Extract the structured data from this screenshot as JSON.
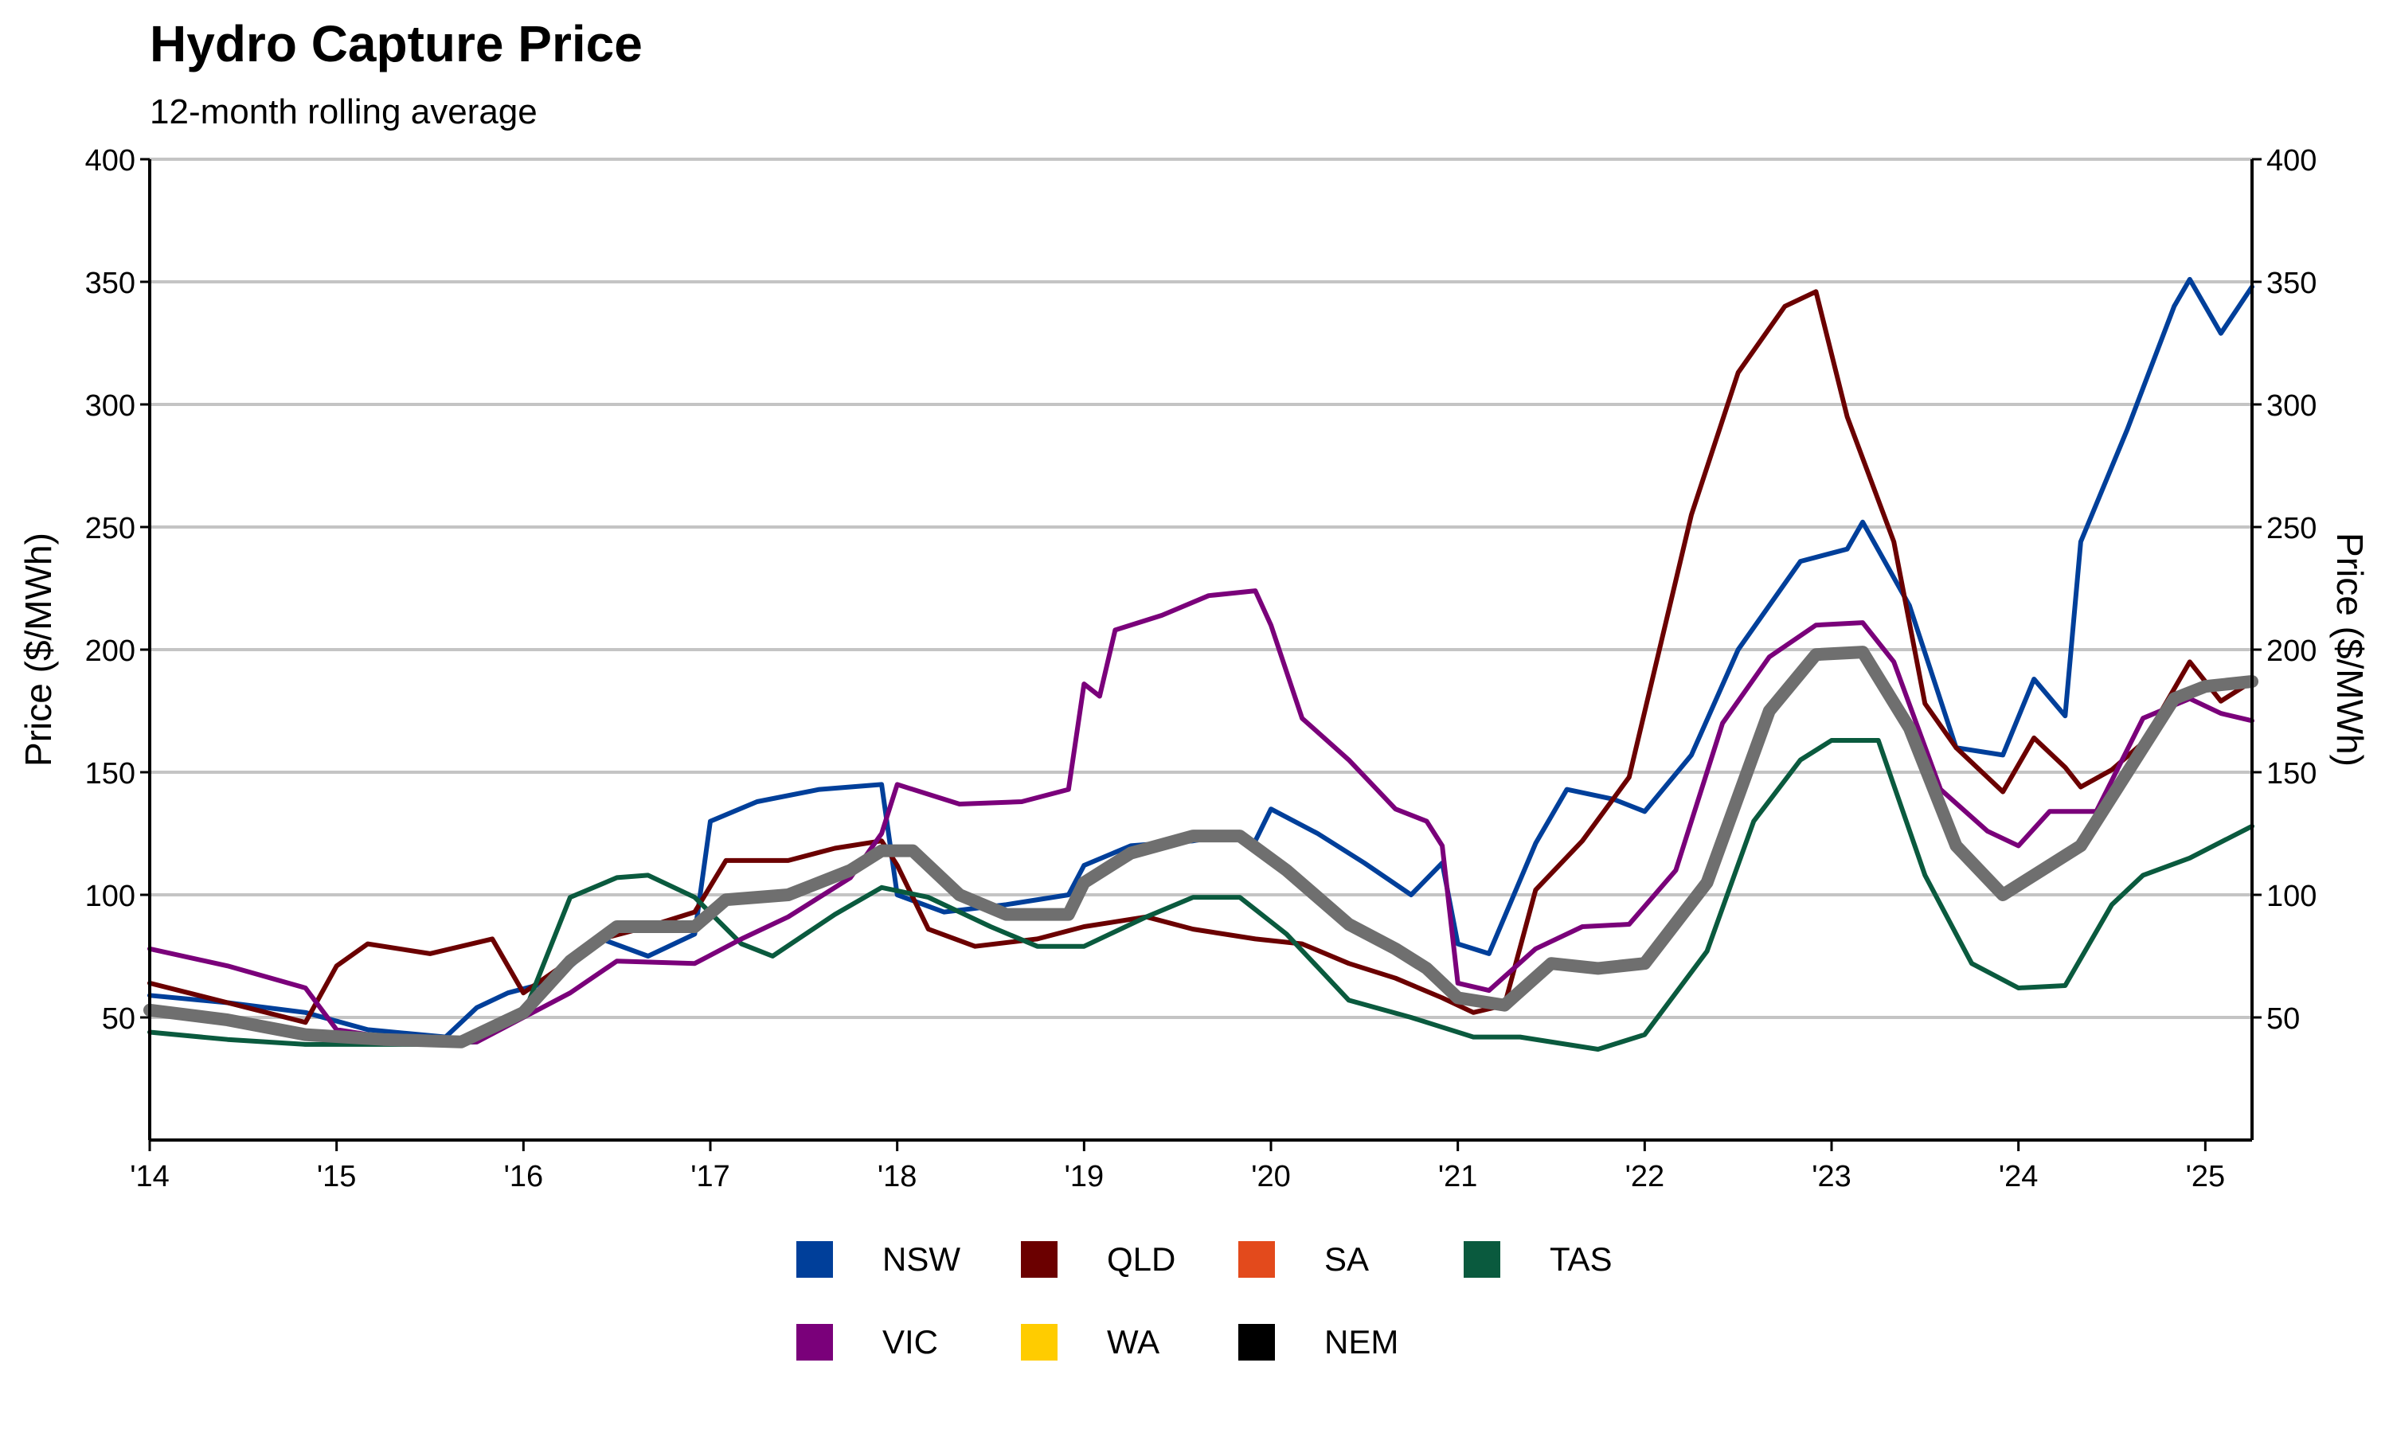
{
  "chart_data": {
    "type": "line",
    "title": "Hydro Capture Price",
    "subtitle": "12-month rolling average",
    "ylabel": "Price ($/MWh)",
    "ylabel_right": "Price ($/MWh)",
    "ylim": [
      0,
      400
    ],
    "yticks": [
      50,
      100,
      150,
      200,
      250,
      300,
      350,
      400
    ],
    "xlim": [
      "2014-01",
      "2025-04"
    ],
    "xticks": [
      {
        "date": "2014-01",
        "label": "'14"
      },
      {
        "date": "2015-01",
        "label": "'15"
      },
      {
        "date": "2016-01",
        "label": "'16"
      },
      {
        "date": "2017-01",
        "label": "'17"
      },
      {
        "date": "2018-01",
        "label": "'18"
      },
      {
        "date": "2019-01",
        "label": "'19"
      },
      {
        "date": "2020-01",
        "label": "'20"
      },
      {
        "date": "2021-01",
        "label": "'21"
      },
      {
        "date": "2022-01",
        "label": "'22"
      },
      {
        "date": "2023-01",
        "label": "'23"
      },
      {
        "date": "2024-01",
        "label": "'24"
      },
      {
        "date": "2025-01",
        "label": "'25"
      }
    ],
    "grid": "horizontal",
    "legend_position": "bottom",
    "legend": [
      {
        "name": "NSW",
        "color": "#003f9a"
      },
      {
        "name": "QLD",
        "color": "#6b0000"
      },
      {
        "name": "SA",
        "color": "#e34a1c"
      },
      {
        "name": "TAS",
        "color": "#0a5a3e"
      },
      {
        "name": "VIC",
        "color": "#7a007a"
      },
      {
        "name": "WA",
        "color": "#ffcc00"
      },
      {
        "name": "NEM",
        "color": "#000000"
      }
    ],
    "series": [
      {
        "name": "NSW",
        "color": "#003f9a",
        "points": [
          [
            "2014-01",
            59
          ],
          [
            "2014-06",
            56
          ],
          [
            "2014-11",
            52
          ],
          [
            "2015-03",
            45
          ],
          [
            "2015-08",
            42
          ],
          [
            "2015-10",
            54
          ],
          [
            "2015-12",
            60
          ],
          [
            "2016-03",
            65
          ],
          [
            "2016-06",
            82
          ],
          [
            "2016-09",
            75
          ],
          [
            "2016-12",
            84
          ],
          [
            "2017-01",
            130
          ],
          [
            "2017-04",
            138
          ],
          [
            "2017-08",
            143
          ],
          [
            "2017-12",
            145
          ],
          [
            "2018-01",
            100
          ],
          [
            "2018-04",
            93
          ],
          [
            "2018-08",
            96
          ],
          [
            "2018-12",
            100
          ],
          [
            "2019-01",
            112
          ],
          [
            "2019-04",
            120
          ],
          [
            "2019-08",
            122
          ],
          [
            "2019-10",
            124
          ],
          [
            "2019-12",
            122
          ],
          [
            "2020-01",
            135
          ],
          [
            "2020-04",
            125
          ],
          [
            "2020-07",
            113
          ],
          [
            "2020-10",
            100
          ],
          [
            "2020-12",
            113
          ],
          [
            "2021-01",
            80
          ],
          [
            "2021-03",
            76
          ],
          [
            "2021-06",
            121
          ],
          [
            "2021-08",
            143
          ],
          [
            "2021-11",
            139
          ],
          [
            "2022-01",
            134
          ],
          [
            "2022-04",
            157
          ],
          [
            "2022-07",
            200
          ],
          [
            "2022-11",
            236
          ],
          [
            "2023-02",
            241
          ],
          [
            "2023-03",
            252
          ],
          [
            "2023-06",
            218
          ],
          [
            "2023-09",
            160
          ],
          [
            "2023-12",
            157
          ],
          [
            "2024-02",
            188
          ],
          [
            "2024-04",
            173
          ],
          [
            "2024-05",
            244
          ],
          [
            "2024-08",
            290
          ],
          [
            "2024-11",
            340
          ],
          [
            "2024-12",
            351
          ],
          [
            "2025-02",
            329
          ],
          [
            "2025-04",
            348
          ]
        ]
      },
      {
        "name": "QLD",
        "color": "#6b0000",
        "points": [
          [
            "2014-01",
            64
          ],
          [
            "2014-06",
            56
          ],
          [
            "2014-11",
            48
          ],
          [
            "2015-01",
            71
          ],
          [
            "2015-03",
            80
          ],
          [
            "2015-07",
            76
          ],
          [
            "2015-11",
            82
          ],
          [
            "2016-01",
            60
          ],
          [
            "2016-06",
            82
          ],
          [
            "2016-09",
            87
          ],
          [
            "2016-12",
            93
          ],
          [
            "2017-02",
            114
          ],
          [
            "2017-06",
            114
          ],
          [
            "2017-09",
            119
          ],
          [
            "2017-12",
            122
          ],
          [
            "2018-01",
            112
          ],
          [
            "2018-03",
            86
          ],
          [
            "2018-06",
            79
          ],
          [
            "2018-10",
            82
          ],
          [
            "2019-01",
            87
          ],
          [
            "2019-05",
            91
          ],
          [
            "2019-08",
            86
          ],
          [
            "2019-12",
            82
          ],
          [
            "2020-03",
            80
          ],
          [
            "2020-06",
            72
          ],
          [
            "2020-09",
            66
          ],
          [
            "2020-12",
            58
          ],
          [
            "2021-02",
            52
          ],
          [
            "2021-04",
            55
          ],
          [
            "2021-06",
            102
          ],
          [
            "2021-09",
            122
          ],
          [
            "2021-12",
            148
          ],
          [
            "2022-04",
            255
          ],
          [
            "2022-07",
            313
          ],
          [
            "2022-10",
            340
          ],
          [
            "2022-12",
            346
          ],
          [
            "2023-02",
            295
          ],
          [
            "2023-05",
            244
          ],
          [
            "2023-07",
            178
          ],
          [
            "2023-09",
            160
          ],
          [
            "2023-12",
            142
          ],
          [
            "2024-02",
            164
          ],
          [
            "2024-04",
            152
          ],
          [
            "2024-05",
            144
          ],
          [
            "2024-07",
            151
          ],
          [
            "2024-09",
            162
          ],
          [
            "2024-12",
            195
          ],
          [
            "2025-02",
            179
          ],
          [
            "2025-04",
            187
          ]
        ]
      },
      {
        "name": "TAS",
        "color": "#0a5a3e",
        "points": [
          [
            "2014-01",
            44
          ],
          [
            "2014-06",
            41
          ],
          [
            "2014-11",
            39
          ],
          [
            "2015-06",
            39
          ],
          [
            "2015-10",
            40
          ],
          [
            "2016-01",
            51
          ],
          [
            "2016-04",
            99
          ],
          [
            "2016-07",
            107
          ],
          [
            "2016-09",
            108
          ],
          [
            "2016-12",
            99
          ],
          [
            "2017-03",
            80
          ],
          [
            "2017-05",
            75
          ],
          [
            "2017-09",
            92
          ],
          [
            "2017-12",
            103
          ],
          [
            "2018-03",
            99
          ],
          [
            "2018-07",
            87
          ],
          [
            "2018-10",
            79
          ],
          [
            "2019-01",
            79
          ],
          [
            "2019-05",
            91
          ],
          [
            "2019-08",
            99
          ],
          [
            "2019-11",
            99
          ],
          [
            "2020-02",
            84
          ],
          [
            "2020-06",
            57
          ],
          [
            "2020-10",
            50
          ],
          [
            "2020-12",
            46
          ],
          [
            "2021-02",
            42
          ],
          [
            "2021-05",
            42
          ],
          [
            "2021-10",
            37
          ],
          [
            "2022-01",
            43
          ],
          [
            "2022-05",
            77
          ],
          [
            "2022-08",
            130
          ],
          [
            "2022-11",
            155
          ],
          [
            "2023-01",
            163
          ],
          [
            "2023-04",
            163
          ],
          [
            "2023-07",
            108
          ],
          [
            "2023-10",
            72
          ],
          [
            "2024-01",
            62
          ],
          [
            "2024-04",
            63
          ],
          [
            "2024-07",
            96
          ],
          [
            "2024-09",
            108
          ],
          [
            "2024-12",
            115
          ],
          [
            "2025-04",
            128
          ]
        ]
      },
      {
        "name": "VIC",
        "color": "#7a007a",
        "points": [
          [
            "2014-01",
            78
          ],
          [
            "2014-06",
            71
          ],
          [
            "2014-11",
            62
          ],
          [
            "2015-01",
            45
          ],
          [
            "2015-06",
            40
          ],
          [
            "2015-10",
            40
          ],
          [
            "2016-01",
            50
          ],
          [
            "2016-04",
            60
          ],
          [
            "2016-07",
            73
          ],
          [
            "2016-12",
            72
          ],
          [
            "2017-03",
            82
          ],
          [
            "2017-06",
            91
          ],
          [
            "2017-10",
            107
          ],
          [
            "2017-12",
            125
          ],
          [
            "2018-01",
            145
          ],
          [
            "2018-05",
            137
          ],
          [
            "2018-09",
            138
          ],
          [
            "2018-12",
            143
          ],
          [
            "2019-01",
            186
          ],
          [
            "2019-02",
            181
          ],
          [
            "2019-03",
            208
          ],
          [
            "2019-06",
            214
          ],
          [
            "2019-09",
            222
          ],
          [
            "2019-12",
            224
          ],
          [
            "2020-01",
            210
          ],
          [
            "2020-03",
            172
          ],
          [
            "2020-06",
            155
          ],
          [
            "2020-09",
            135
          ],
          [
            "2020-11",
            130
          ],
          [
            "2020-12",
            120
          ],
          [
            "2021-01",
            64
          ],
          [
            "2021-03",
            61
          ],
          [
            "2021-06",
            78
          ],
          [
            "2021-09",
            87
          ],
          [
            "2021-12",
            88
          ],
          [
            "2022-03",
            110
          ],
          [
            "2022-06",
            170
          ],
          [
            "2022-09",
            197
          ],
          [
            "2022-12",
            210
          ],
          [
            "2023-03",
            211
          ],
          [
            "2023-05",
            195
          ],
          [
            "2023-08",
            143
          ],
          [
            "2023-11",
            126
          ],
          [
            "2024-01",
            120
          ],
          [
            "2024-03",
            134
          ],
          [
            "2024-06",
            134
          ],
          [
            "2024-09",
            172
          ],
          [
            "2024-12",
            180
          ],
          [
            "2025-02",
            174
          ],
          [
            "2025-04",
            171
          ]
        ]
      },
      {
        "name": "NEM",
        "color": "#6f6f6f",
        "points": [
          [
            "2014-01",
            53
          ],
          [
            "2014-06",
            49
          ],
          [
            "2014-11",
            43
          ],
          [
            "2015-04",
            41
          ],
          [
            "2015-09",
            40
          ],
          [
            "2016-01",
            52
          ],
          [
            "2016-04",
            73
          ],
          [
            "2016-07",
            87
          ],
          [
            "2016-12",
            87
          ],
          [
            "2017-02",
            98
          ],
          [
            "2017-06",
            100
          ],
          [
            "2017-10",
            110
          ],
          [
            "2017-12",
            118
          ],
          [
            "2018-02",
            118
          ],
          [
            "2018-05",
            100
          ],
          [
            "2018-08",
            92
          ],
          [
            "2018-12",
            92
          ],
          [
            "2019-01",
            105
          ],
          [
            "2019-04",
            117
          ],
          [
            "2019-08",
            124
          ],
          [
            "2019-11",
            124
          ],
          [
            "2020-02",
            110
          ],
          [
            "2020-06",
            88
          ],
          [
            "2020-09",
            78
          ],
          [
            "2020-11",
            70
          ],
          [
            "2021-01",
            58
          ],
          [
            "2021-04",
            55
          ],
          [
            "2021-07",
            72
          ],
          [
            "2021-10",
            70
          ],
          [
            "2022-01",
            72
          ],
          [
            "2022-05",
            105
          ],
          [
            "2022-09",
            175
          ],
          [
            "2022-12",
            198
          ],
          [
            "2023-03",
            199
          ],
          [
            "2023-06",
            168
          ],
          [
            "2023-09",
            120
          ],
          [
            "2023-12",
            100
          ],
          [
            "2024-02",
            108
          ],
          [
            "2024-05",
            120
          ],
          [
            "2024-08",
            150
          ],
          [
            "2024-11",
            180
          ],
          [
            "2025-01",
            185
          ],
          [
            "2025-04",
            187
          ]
        ]
      }
    ]
  }
}
